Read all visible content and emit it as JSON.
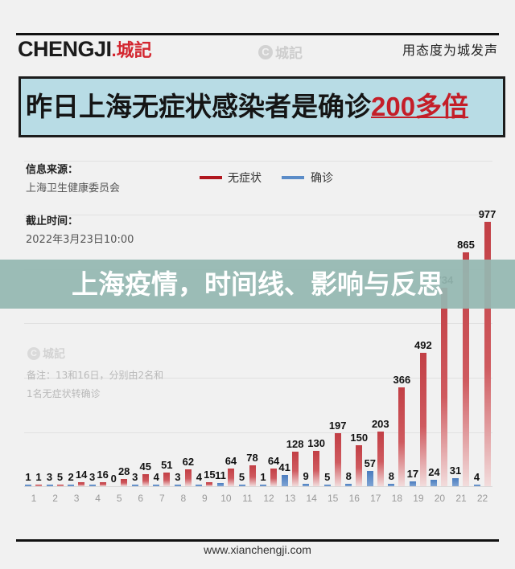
{
  "header": {
    "logo_text": "CHENGJI",
    "logo_cn": ".城記",
    "watermark_icon": "C",
    "watermark_text": "城記",
    "slogan": "用态度为城发声"
  },
  "title": {
    "main": "昨日上海无症状感染者是确诊",
    "highlight": "200多倍"
  },
  "info": {
    "source_label": "信息来源：",
    "source_value": "上海卫生健康委员会",
    "deadline_label": "截止时间：",
    "deadline_value": "2022年3月23日10:00"
  },
  "legend": [
    {
      "label": "无症状",
      "color": "#b0171f"
    },
    {
      "label": "确诊",
      "color": "#5b8cc8"
    }
  ],
  "banner": {
    "text": "上海疫情，时间线、影响与反思"
  },
  "notes": {
    "watermark_icon": "C",
    "watermark_text": "城記",
    "line1": "备注：13和16日，分别由2名和",
    "line2": "1名无症状转确诊"
  },
  "footer": {
    "url": "www.xianchengji.com"
  },
  "colors": {
    "background": "#f1f1f1",
    "title_box": "#b8dce5",
    "highlight": "#c41e28",
    "asymptomatic": "#c23f45",
    "confirmed": "#4f82c3",
    "banner": "#94b8b1"
  },
  "chart_data": {
    "type": "bar",
    "title": "昨日上海无症状感染者是确诊200多倍",
    "xlabel": "",
    "ylabel": "",
    "ylim": [
      0,
      1200
    ],
    "grid": true,
    "legend_position": "top",
    "categories": [
      "1",
      "2",
      "3",
      "4",
      "5",
      "6",
      "7",
      "8",
      "9",
      "10",
      "11",
      "12",
      "13",
      "14",
      "15",
      "16",
      "17",
      "18",
      "19",
      "20",
      "21",
      "22"
    ],
    "series": [
      {
        "name": "无症状",
        "key": "asymptomatic",
        "color": "#c23f45",
        "values": [
          1,
          5,
          14,
          16,
          28,
          45,
          51,
          62,
          15,
          64,
          78,
          64,
          128,
          130,
          197,
          150,
          203,
          366,
          492,
          734,
          865,
          977
        ]
      },
      {
        "name": "确诊",
        "key": "confirmed",
        "color": "#4f82c3",
        "values": [
          1,
          3,
          2,
          3,
          0,
          3,
          4,
          3,
          4,
          11,
          5,
          1,
          41,
          9,
          5,
          8,
          57,
          8,
          17,
          24,
          31,
          4
        ]
      }
    ]
  }
}
